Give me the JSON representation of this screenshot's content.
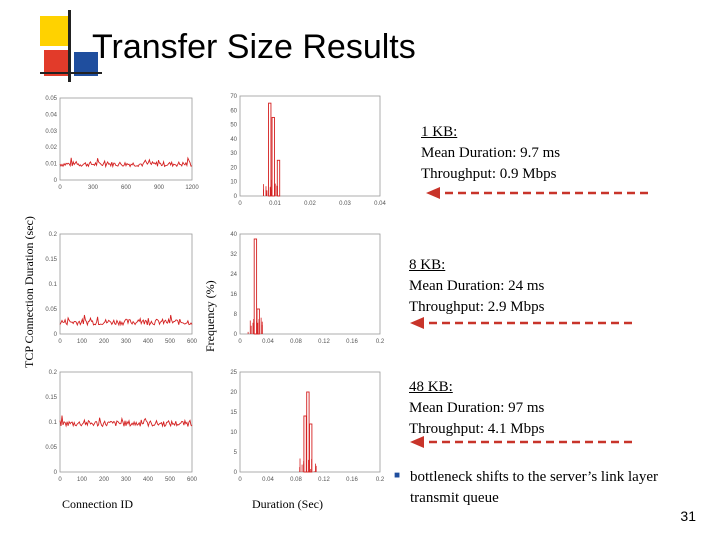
{
  "title": "Transfer Size Results",
  "y_axis_left_label": "TCP Connection Duration (sec)",
  "y_axis_right_label": "Frequency (%)",
  "x_axis_left_label": "Connection ID",
  "x_axis_right_label": "Duration (Sec)",
  "results": [
    {
      "head": "1 KB:",
      "duration": "Mean Duration:  9.7 ms",
      "throughput": "Throughput:  0.9 Mbps"
    },
    {
      "head": "8 KB:",
      "duration": "Mean Duration:  24 ms",
      "throughput": "Throughput: 2.9 Mbps"
    },
    {
      "head": "48 KB:",
      "duration": "Mean Duration:  97 ms",
      "throughput": "Throughput: 4.1 Mbps"
    }
  ],
  "bullet": "bottleneck shifts to the server’s link layer transmit queue",
  "page_number": "31",
  "colors": {
    "accent_yellow": "#ffd200",
    "accent_red": "#e23b2a",
    "accent_blue": "#1f4e9e",
    "arrow_red": "#c8342a",
    "plot_red": "#d42020"
  },
  "chart_data": [
    {
      "type": "line",
      "panel": "1 KB duration",
      "yticks": [
        "0.05",
        "0.04",
        "0.03",
        "0.02",
        "0.01",
        "0"
      ],
      "xticks": [
        "0",
        "300",
        "600",
        "900",
        "1200"
      ],
      "ylim": [
        0,
        0.05
      ],
      "xlim": [
        0,
        1200
      ],
      "series": [
        {
          "values_mean": 0.0097
        }
      ]
    },
    {
      "type": "bar",
      "panel": "1 KB histogram",
      "yticks": [
        "70",
        "60",
        "50",
        "40",
        "30",
        "20",
        "10",
        "0"
      ],
      "xticks": [
        "0",
        "0.01",
        "0.02",
        "0.03",
        "0.04"
      ],
      "ylim": [
        0,
        70
      ],
      "xlim": [
        0,
        0.04
      ],
      "peaks": [
        {
          "x": 0.0085,
          "y": 65
        },
        {
          "x": 0.0095,
          "y": 55
        },
        {
          "x": 0.011,
          "y": 25
        }
      ]
    },
    {
      "type": "line",
      "panel": "8 KB duration",
      "yticks": [
        "0.2",
        "0.15",
        "0.1",
        "0.05",
        "0"
      ],
      "xticks": [
        "0",
        "100",
        "200",
        "300",
        "400",
        "500",
        "600"
      ],
      "ylim": [
        0,
        0.2
      ],
      "xlim": [
        0,
        600
      ],
      "series": [
        {
          "values_mean": 0.024
        }
      ]
    },
    {
      "type": "bar",
      "panel": "8 KB histogram",
      "yticks": [
        "40",
        "32",
        "24",
        "16",
        "8",
        "0"
      ],
      "xticks": [
        "0",
        "0.04",
        "0.08",
        "0.12",
        "0.16",
        "0.2"
      ],
      "ylim": [
        0,
        40
      ],
      "xlim": [
        0,
        0.2
      ],
      "peaks": [
        {
          "x": 0.022,
          "y": 38
        },
        {
          "x": 0.026,
          "y": 10
        }
      ]
    },
    {
      "type": "line",
      "panel": "48 KB duration",
      "yticks": [
        "0.2",
        "0.15",
        "0.1",
        "0.05",
        "0"
      ],
      "xticks": [
        "0",
        "100",
        "200",
        "300",
        "400",
        "500",
        "600"
      ],
      "ylim": [
        0,
        0.2
      ],
      "xlim": [
        0,
        600
      ],
      "series": [
        {
          "values_mean": 0.097
        }
      ]
    },
    {
      "type": "bar",
      "panel": "48 KB histogram",
      "yticks": [
        "25",
        "20",
        "15",
        "10",
        "5",
        "0"
      ],
      "xticks": [
        "0",
        "0.04",
        "0.08",
        "0.12",
        "0.16",
        "0.2"
      ],
      "ylim": [
        0,
        25
      ],
      "xlim": [
        0,
        0.2
      ],
      "peaks": [
        {
          "x": 0.097,
          "y": 20
        },
        {
          "x": 0.093,
          "y": 14
        },
        {
          "x": 0.101,
          "y": 12
        }
      ]
    }
  ]
}
